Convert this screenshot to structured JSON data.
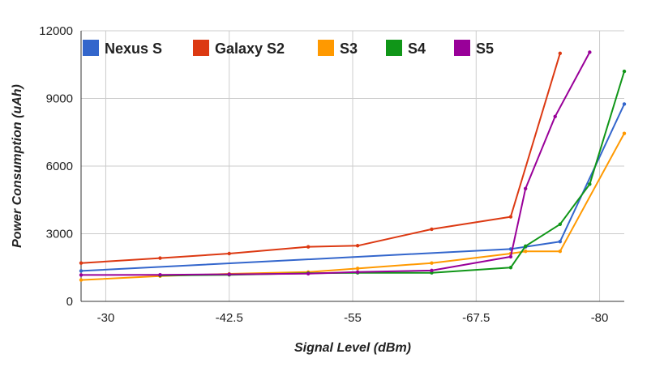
{
  "chart_data": {
    "type": "line",
    "title": "",
    "xlabel": "Signal Level (dBm)",
    "ylabel": "Power Consumption (uAh)",
    "xlim": [
      -27.5,
      -82.5
    ],
    "ylim": [
      0,
      12000
    ],
    "x_ticks": [
      -30,
      -42.5,
      -55,
      -67.5,
      -80
    ],
    "x_tick_labels": [
      "-30",
      "-42.5",
      "-55",
      "-67.5",
      "-80"
    ],
    "y_ticks": [
      0,
      3000,
      6000,
      9000,
      12000
    ],
    "y_tick_labels": [
      "0",
      "3000",
      "6000",
      "9000",
      "12000"
    ],
    "grid": true,
    "legend_position": "top",
    "series": [
      {
        "name": "Nexus S",
        "color": "#3366cc",
        "points": [
          [
            -27.5,
            1350
          ],
          [
            -71,
            2320
          ],
          [
            -72.5,
            2420
          ],
          [
            -76,
            2650
          ],
          [
            -82.5,
            8750
          ]
        ]
      },
      {
        "name": "Galaxy S2",
        "color": "#dc3912",
        "points": [
          [
            -27.5,
            1700
          ],
          [
            -35.5,
            1920
          ],
          [
            -42.5,
            2120
          ],
          [
            -50.5,
            2420
          ],
          [
            -55.5,
            2470
          ],
          [
            -63,
            3200
          ],
          [
            -71,
            3750
          ],
          [
            -76,
            11000
          ]
        ]
      },
      {
        "name": "S3",
        "color": "#ff9900",
        "points": [
          [
            -27.5,
            950
          ],
          [
            -35.5,
            1120
          ],
          [
            -42.5,
            1220
          ],
          [
            -50.5,
            1300
          ],
          [
            -55.5,
            1460
          ],
          [
            -63,
            1700
          ],
          [
            -71,
            2120
          ],
          [
            -72.5,
            2220
          ],
          [
            -76,
            2220
          ],
          [
            -82.5,
            7450
          ]
        ]
      },
      {
        "name": "S4",
        "color": "#109618",
        "points": [
          [
            -35.5,
            1150
          ],
          [
            -42.5,
            1180
          ],
          [
            -50.5,
            1250
          ],
          [
            -55.5,
            1270
          ],
          [
            -63,
            1270
          ],
          [
            -71,
            1500
          ],
          [
            -72.5,
            2450
          ],
          [
            -76,
            3420
          ],
          [
            -79,
            5200
          ],
          [
            -82.5,
            10200
          ]
        ]
      },
      {
        "name": "S5",
        "color": "#990099",
        "points": [
          [
            -27.5,
            1170
          ],
          [
            -35.5,
            1180
          ],
          [
            -42.5,
            1200
          ],
          [
            -50.5,
            1230
          ],
          [
            -55.5,
            1300
          ],
          [
            -63,
            1370
          ],
          [
            -71,
            1980
          ],
          [
            -72.5,
            5000
          ],
          [
            -75.5,
            8200
          ],
          [
            -79,
            11050
          ]
        ]
      }
    ]
  }
}
